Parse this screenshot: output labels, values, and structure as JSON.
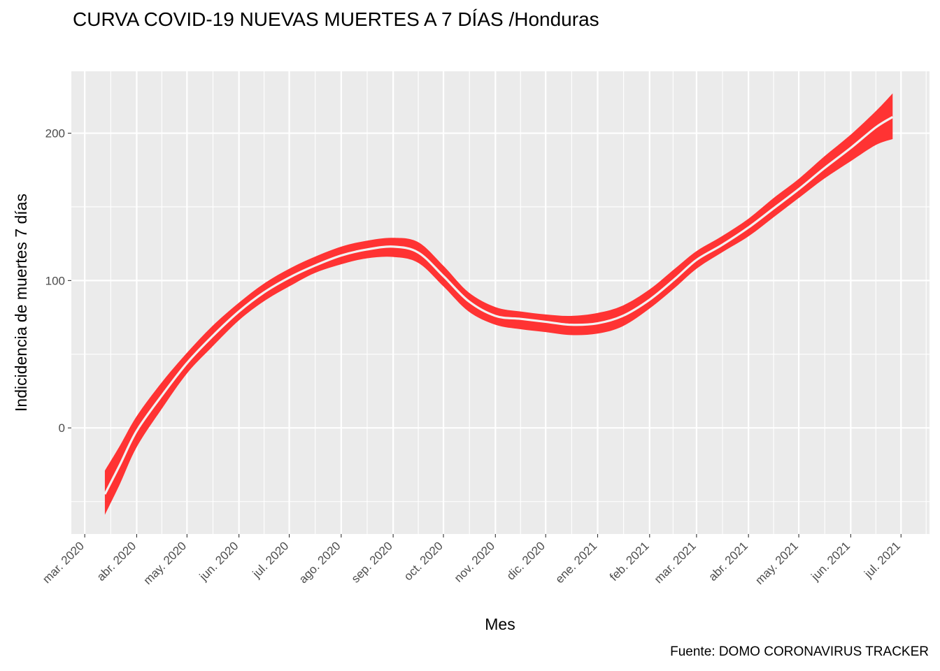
{
  "chart_data": {
    "type": "line",
    "title": "CURVA COVID-19 NUEVAS MUERTES A 7 DÍAS /Honduras",
    "xlabel": "Mes",
    "ylabel": "Indicidencia de muertes 7 días",
    "caption": "Fuente: DOMO CORONAVIRUS TRACKER",
    "xlim": [
      "2020-02-22",
      "2021-07-18"
    ],
    "ylim": [
      -72,
      242
    ],
    "y_ticks": [
      0,
      100,
      200
    ],
    "y_tick_labels": [
      "0",
      "100",
      "200"
    ],
    "x_ticks": [
      "2020-03-01",
      "2020-04-01",
      "2020-05-01",
      "2020-06-01",
      "2020-07-01",
      "2020-08-01",
      "2020-09-01",
      "2020-10-01",
      "2020-11-01",
      "2020-12-01",
      "2021-01-01",
      "2021-02-01",
      "2021-03-01",
      "2021-04-01",
      "2021-05-01",
      "2021-06-01",
      "2021-07-01"
    ],
    "x_tick_labels": [
      "mar. 2020",
      "abr. 2020",
      "may. 2020",
      "jun. 2020",
      "jul. 2020",
      "ago. 2020",
      "sep. 2020",
      "oct. 2020",
      "nov. 2020",
      "dic. 2020",
      "ene. 2021",
      "feb. 2021",
      "mar. 2021",
      "abr. 2021",
      "may. 2021",
      "jun. 2021",
      "jul. 2021"
    ],
    "grid": true,
    "colors": {
      "panel": "#EBEBEB",
      "grid": "#FFFFFF",
      "band": "#FF3333",
      "line": "#F2F2F2"
    },
    "series": [
      {
        "x": [
          "2020-03-13",
          "2020-03-22",
          "2020-04-01",
          "2020-04-16",
          "2020-05-01",
          "2020-05-16",
          "2020-06-01",
          "2020-06-16",
          "2020-07-01",
          "2020-07-16",
          "2020-08-01",
          "2020-08-16",
          "2020-09-01",
          "2020-09-16",
          "2020-10-01",
          "2020-10-16",
          "2020-11-01",
          "2020-11-16",
          "2020-12-01",
          "2020-12-16",
          "2021-01-01",
          "2021-01-16",
          "2021-02-01",
          "2021-02-16",
          "2021-03-01",
          "2021-03-16",
          "2021-04-01",
          "2021-04-16",
          "2021-05-01",
          "2021-05-16",
          "2021-06-01",
          "2021-06-16",
          "2021-06-26"
        ],
        "y": [
          -45,
          -25,
          -2,
          22,
          44,
          62,
          79,
          92,
          102,
          110,
          117,
          121,
          123,
          119,
          103,
          86,
          76,
          74,
          72,
          70,
          71,
          76,
          87,
          101,
          114,
          124,
          136,
          149,
          162,
          176,
          190,
          204,
          211
        ],
        "ymin": [
          -59,
          -38,
          -13,
          13,
          37,
          55,
          73,
          86,
          96,
          105,
          111,
          115,
          116,
          112,
          96,
          79,
          70,
          67,
          65,
          63,
          64,
          69,
          81,
          95,
          108,
          119,
          130,
          143,
          156,
          169,
          181,
          192,
          196
        ],
        "ymax": [
          -29,
          -12,
          8,
          31,
          51,
          69,
          85,
          98,
          108,
          116,
          123,
          127,
          129,
          126,
          110,
          92,
          82,
          79,
          77,
          76,
          78,
          83,
          94,
          108,
          120,
          130,
          142,
          156,
          169,
          184,
          199,
          215,
          227
        ]
      }
    ]
  }
}
